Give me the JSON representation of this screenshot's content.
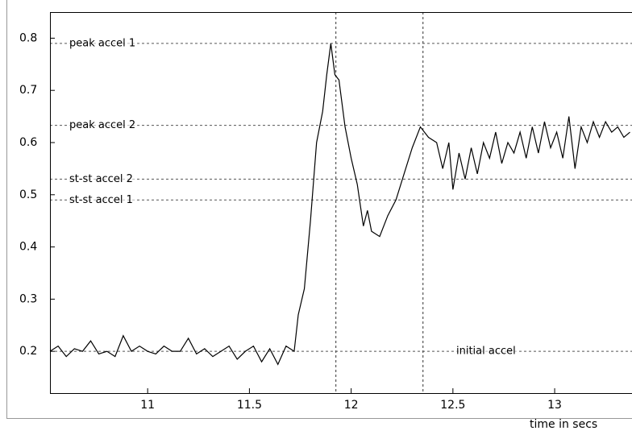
{
  "chart_data": {
    "type": "line",
    "xlabel": "time in secs",
    "xlim": [
      10.52,
      13.38
    ],
    "ylim": [
      0.12,
      0.85
    ],
    "xticks": [
      11,
      11.5,
      12,
      12.5,
      13
    ],
    "yticks": [
      0.2,
      0.3,
      0.4,
      0.5,
      0.6,
      0.7,
      0.8
    ],
    "grid": false,
    "color": "#000000",
    "x": [
      10.52,
      10.56,
      10.6,
      10.64,
      10.68,
      10.72,
      10.76,
      10.8,
      10.84,
      10.88,
      10.92,
      10.96,
      11,
      11.04,
      11.08,
      11.12,
      11.16,
      11.2,
      11.24,
      11.28,
      11.32,
      11.36,
      11.4,
      11.44,
      11.48,
      11.52,
      11.56,
      11.6,
      11.64,
      11.68,
      11.72,
      11.74,
      11.77,
      11.8,
      11.83,
      11.86,
      11.88,
      11.9,
      11.92,
      11.94,
      11.97,
      12,
      12.03,
      12.06,
      12.08,
      12.1,
      12.14,
      12.18,
      12.22,
      12.26,
      12.3,
      12.34,
      12.38,
      12.42,
      12.45,
      12.48,
      12.5,
      12.53,
      12.56,
      12.59,
      12.62,
      12.65,
      12.68,
      12.71,
      12.74,
      12.77,
      12.8,
      12.83,
      12.86,
      12.89,
      12.92,
      12.95,
      12.98,
      13.01,
      13.04,
      13.07,
      13.1,
      13.13,
      13.16,
      13.19,
      13.22,
      13.25,
      13.28,
      13.31,
      13.34,
      13.37
    ],
    "values": [
      0.2,
      0.21,
      0.19,
      0.205,
      0.2,
      0.22,
      0.195,
      0.2,
      0.19,
      0.23,
      0.2,
      0.21,
      0.2,
      0.195,
      0.21,
      0.2,
      0.2,
      0.225,
      0.195,
      0.205,
      0.19,
      0.2,
      0.21,
      0.185,
      0.2,
      0.21,
      0.18,
      0.205,
      0.175,
      0.21,
      0.2,
      0.27,
      0.32,
      0.45,
      0.6,
      0.66,
      0.73,
      0.79,
      0.73,
      0.72,
      0.63,
      0.57,
      0.52,
      0.44,
      0.47,
      0.43,
      0.42,
      0.46,
      0.49,
      0.54,
      0.59,
      0.63,
      0.61,
      0.6,
      0.55,
      0.6,
      0.51,
      0.58,
      0.53,
      0.59,
      0.54,
      0.6,
      0.57,
      0.62,
      0.56,
      0.6,
      0.58,
      0.62,
      0.57,
      0.63,
      0.58,
      0.64,
      0.59,
      0.62,
      0.57,
      0.65,
      0.55,
      0.63,
      0.6,
      0.64,
      0.61,
      0.64,
      0.62,
      0.63,
      0.61,
      0.62
    ],
    "hlines": [
      {
        "label": "peak accel 1",
        "value": 0.79
      },
      {
        "label": "peak accel 2",
        "value": 0.633
      },
      {
        "label": "st-st accel 2",
        "value": 0.53
      },
      {
        "label": "st-st accel 1",
        "value": 0.49
      },
      {
        "label": "initial accel",
        "value": 0.2
      }
    ],
    "vlines": [
      11.925,
      12.353
    ]
  }
}
